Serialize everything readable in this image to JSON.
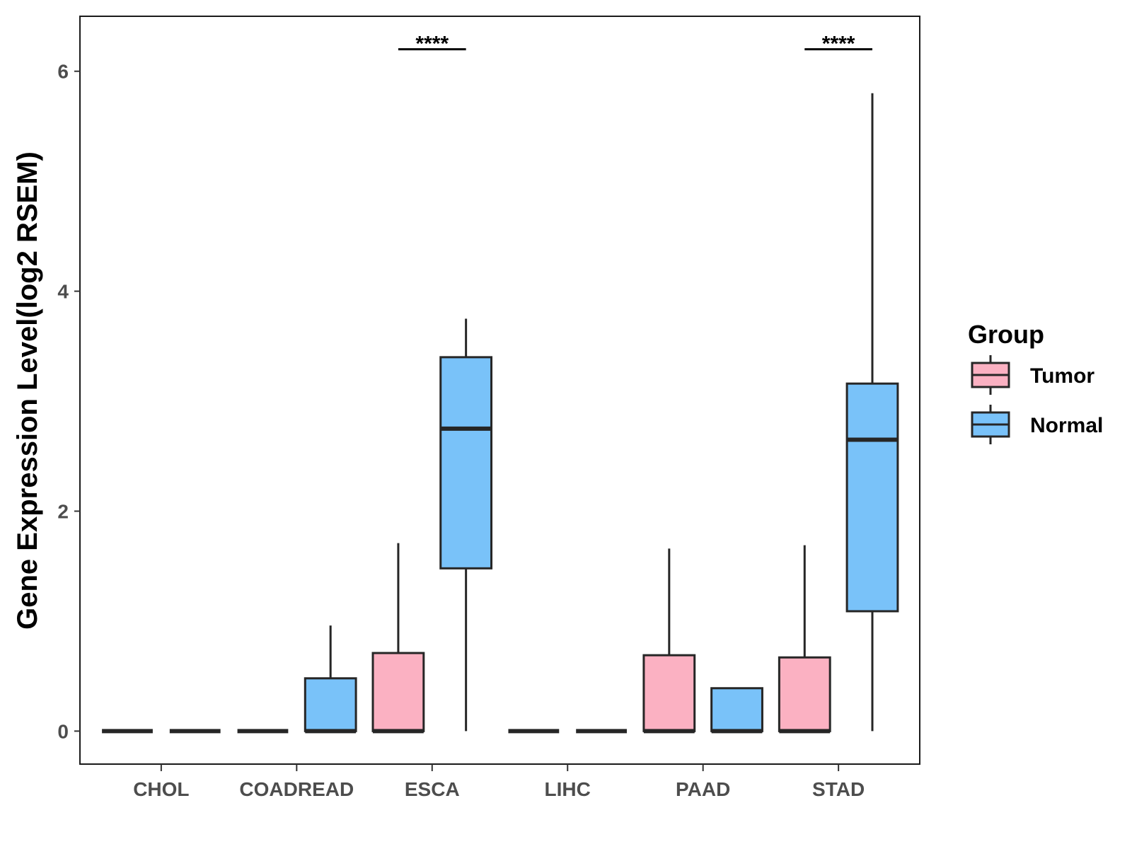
{
  "chart_data": {
    "type": "boxplot",
    "ylabel": "Gene Expression Level(log2 RSEM)",
    "xlabel": "",
    "ylim": [
      -0.3,
      6.5
    ],
    "yticks": [
      0,
      2,
      4,
      6
    ],
    "ytick_labels": [
      "0",
      "2",
      "4",
      "6"
    ],
    "categories": [
      "CHOL",
      "COADREAD",
      "ESCA",
      "LIHC",
      "PAAD",
      "STAD"
    ],
    "legend": {
      "title": "Group",
      "position": "right",
      "entries": [
        {
          "name": "Tumor",
          "color": "#fbb1c2"
        },
        {
          "name": "Normal",
          "color": "#79c2f9"
        }
      ]
    },
    "series": [
      {
        "name": "Tumor",
        "color": "#fbb1c2",
        "boxes": [
          {
            "category": "CHOL",
            "min": 0,
            "q1": 0,
            "median": 0,
            "q3": 0,
            "max": 0
          },
          {
            "category": "COADREAD",
            "min": 0,
            "q1": 0,
            "median": 0,
            "q3": 0,
            "max": 0
          },
          {
            "category": "ESCA",
            "min": 0,
            "q1": 0,
            "median": 0,
            "q3": 0.71,
            "max": 1.71
          },
          {
            "category": "LIHC",
            "min": 0,
            "q1": 0,
            "median": 0,
            "q3": 0,
            "max": 0
          },
          {
            "category": "PAAD",
            "min": 0,
            "q1": 0,
            "median": 0,
            "q3": 0.69,
            "max": 1.66
          },
          {
            "category": "STAD",
            "min": 0,
            "q1": 0,
            "median": 0,
            "q3": 0.67,
            "max": 1.69
          }
        ]
      },
      {
        "name": "Normal",
        "color": "#79c2f9",
        "boxes": [
          {
            "category": "CHOL",
            "min": 0,
            "q1": 0,
            "median": 0,
            "q3": 0,
            "max": 0
          },
          {
            "category": "COADREAD",
            "min": 0,
            "q1": 0,
            "median": 0,
            "q3": 0.48,
            "max": 0.96
          },
          {
            "category": "ESCA",
            "min": 0,
            "q1": 1.48,
            "median": 2.75,
            "q3": 3.4,
            "max": 3.75
          },
          {
            "category": "LIHC",
            "min": 0,
            "q1": 0,
            "median": 0,
            "q3": 0,
            "max": 0
          },
          {
            "category": "PAAD",
            "min": 0,
            "q1": 0,
            "median": 0,
            "q3": 0.39,
            "max": 0.39
          },
          {
            "category": "STAD",
            "min": 0,
            "q1": 1.09,
            "median": 2.65,
            "q3": 3.16,
            "max": 5.8
          }
        ]
      }
    ],
    "significance": [
      {
        "category": "ESCA",
        "label": "****",
        "y": 6.2
      },
      {
        "category": "STAD",
        "label": "****",
        "y": 6.2
      }
    ]
  }
}
